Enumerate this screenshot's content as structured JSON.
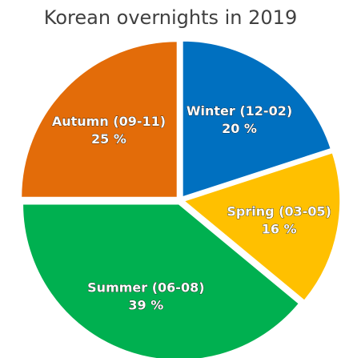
{
  "chart_data": {
    "type": "pie",
    "title": "Korean overnights in 2019",
    "categories": [
      "Winter (12-02)",
      "Spring (03-05)",
      "Summer (06-08)",
      "Autumn (09-11)"
    ],
    "values": [
      20,
      16,
      39,
      25
    ],
    "value_labels": [
      "20 %",
      "16 %",
      "39 %",
      "25 %"
    ],
    "colors": [
      "#0070c0",
      "#ffc000",
      "#00b050",
      "#e36c09"
    ]
  }
}
